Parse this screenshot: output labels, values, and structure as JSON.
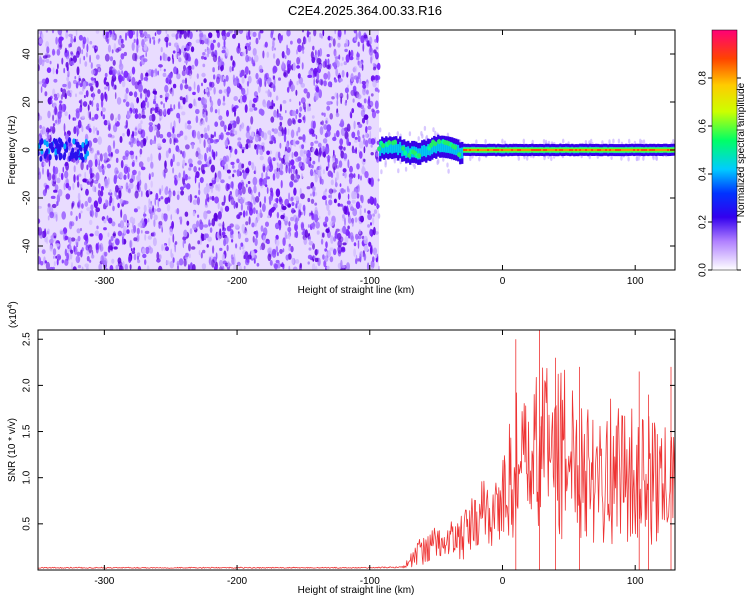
{
  "title": "C2E4.2025.364.00.33.R16",
  "chart_data": [
    {
      "type": "heatmap",
      "name": "spectrogram",
      "xlabel": "Height of straight line (km)",
      "ylabel": "Frequency (Hz)",
      "xlim": [
        -350,
        130
      ],
      "ylim": [
        -50,
        50
      ],
      "xticks": [
        -300,
        -200,
        -100,
        0,
        100
      ],
      "xtick_labels": [
        "-300",
        "-200",
        "-100",
        "0",
        "100"
      ],
      "yticks": [
        -40,
        -20,
        0,
        20,
        40
      ],
      "ytick_labels": [
        "-40",
        "-20",
        "0",
        "20",
        "40"
      ],
      "noise_region_km": [
        -350,
        -93
      ],
      "signal_start_km": -93,
      "carrier_frequency_hz": 0,
      "colorbar": {
        "label": "Normalized spectral amplitude",
        "range": [
          0,
          1
        ],
        "ticks": [
          0.0,
          0.2,
          0.4,
          0.6,
          0.8
        ],
        "tick_labels": [
          "0.0",
          "0.2",
          "0.4",
          "0.6",
          "0.8"
        ]
      }
    },
    {
      "type": "line",
      "name": "snr",
      "xlabel": "Height of straight line (km)",
      "ylabel": "SNR (10 * v/v)",
      "scale_label": "(x10",
      "scale_exponent": "4",
      "xlim": [
        -350,
        130
      ],
      "ylim": [
        0,
        26000
      ],
      "xticks": [
        -300,
        -200,
        -100,
        0,
        100
      ],
      "xtick_labels": [
        "-300",
        "-200",
        "-100",
        "0",
        "100"
      ],
      "yticks": [
        5000,
        10000,
        15000,
        20000,
        25000
      ],
      "ytick_labels": [
        "0.5",
        "1.0",
        "1.5",
        "2.0",
        "2.5"
      ],
      "color": "#ee3333",
      "envelope": {
        "x": [
          -350,
          -100,
          -75,
          -60,
          -45,
          -30,
          -15,
          0,
          10,
          20,
          30,
          45,
          60,
          75,
          90,
          105,
          120,
          130
        ],
        "y": [
          300,
          300,
          400,
          4000,
          5000,
          6000,
          10000,
          12000,
          20000,
          18000,
          24000,
          22000,
          20000,
          19000,
          18000,
          17000,
          16000,
          15000
        ]
      },
      "peaks": [
        {
          "x": 10,
          "y": 25000
        },
        {
          "x": 28,
          "y": 26000
        },
        {
          "x": 40,
          "y": 23000
        },
        {
          "x": 58,
          "y": 22000
        },
        {
          "x": 103,
          "y": 21500
        },
        {
          "x": 110,
          "y": 19000
        },
        {
          "x": 127,
          "y": 22000
        }
      ]
    }
  ]
}
